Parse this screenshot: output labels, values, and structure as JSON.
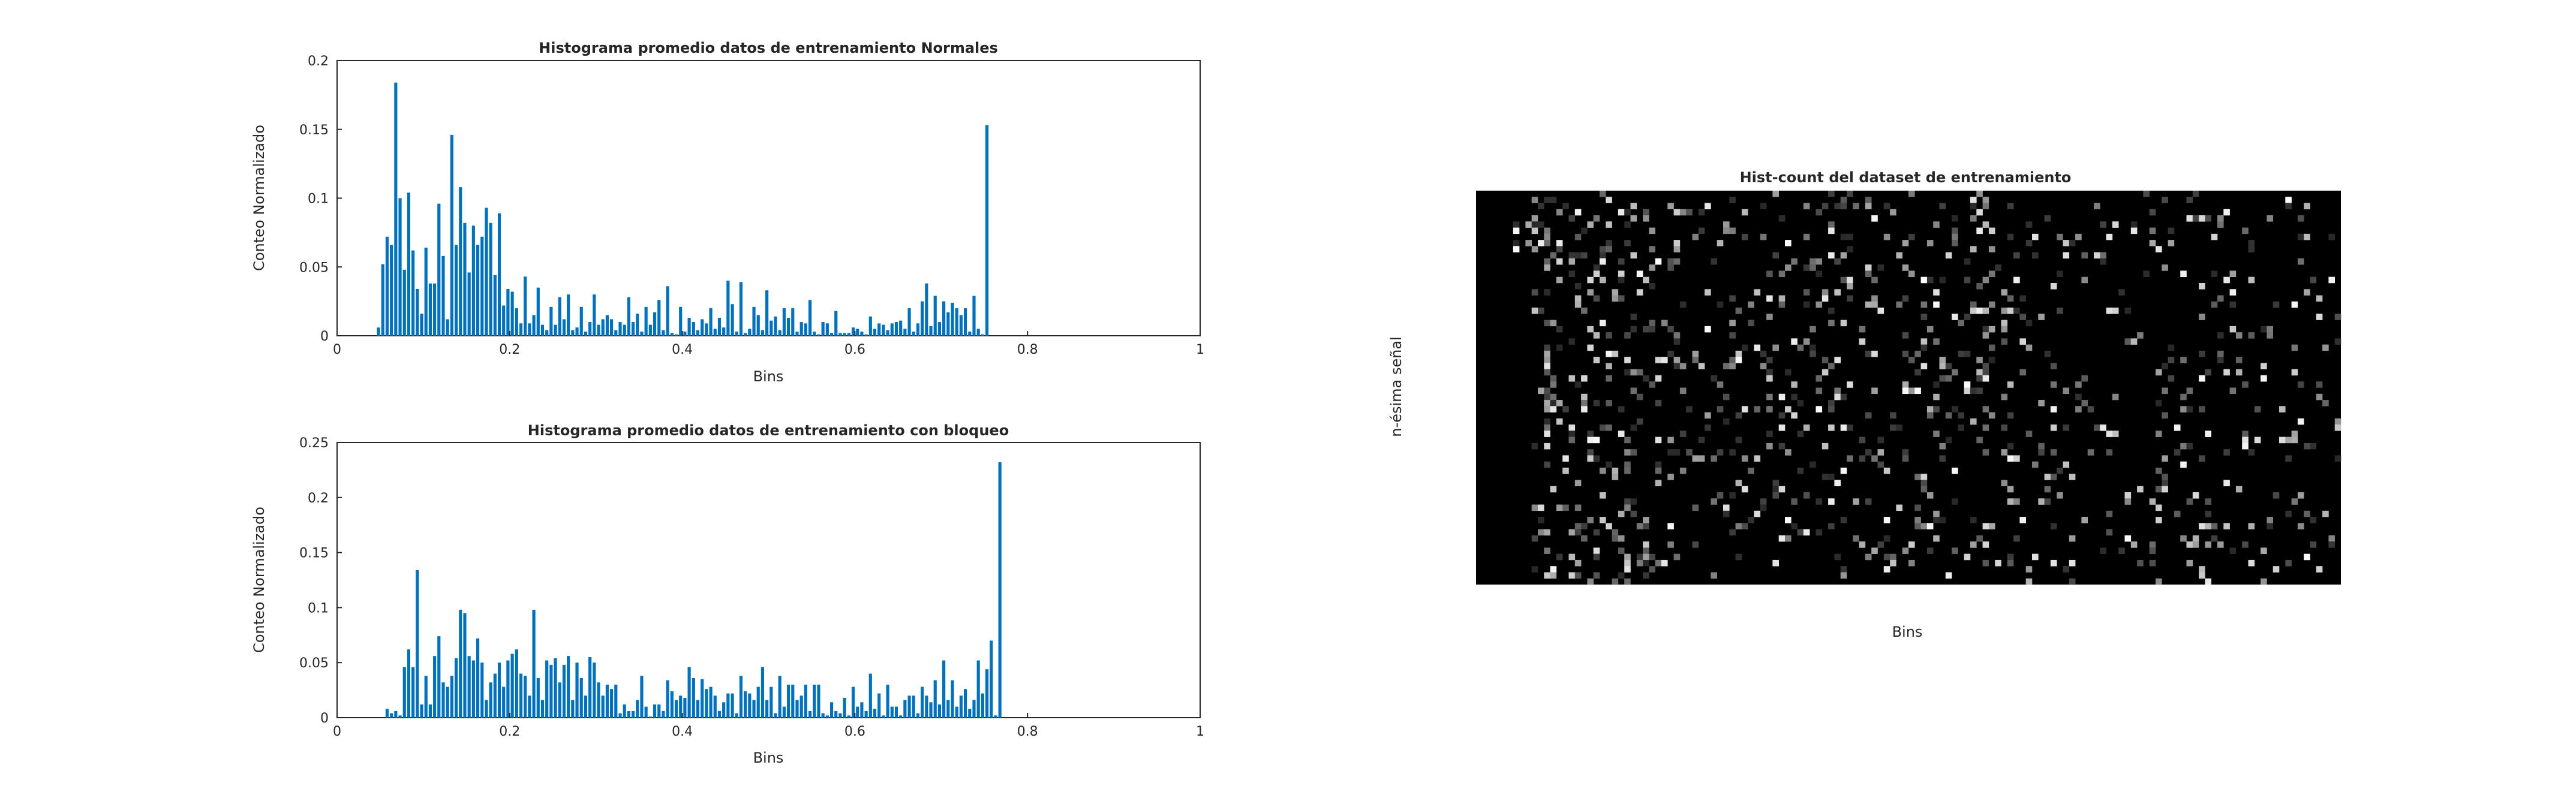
{
  "window": {
    "title": ""
  },
  "colors": {
    "bar": "#0072BD",
    "axes": "#262626",
    "heatmap_bg": "#000000"
  },
  "chart_data": [
    {
      "type": "bar",
      "title": "Histograma promedio datos de entrenamiento Normales",
      "xlabel": "Bins",
      "ylabel": "Conteo Normalizado",
      "xlim": [
        0,
        1
      ],
      "ylim": [
        0,
        0.2
      ],
      "xticks": [
        "0",
        "0.2",
        "0.4",
        "0.6",
        "0.8",
        "1"
      ],
      "yticks": [
        "0",
        "0.05",
        "0.1",
        "0.15",
        "0.2"
      ],
      "x_start": 0.048,
      "x_step": 0.005,
      "values": [
        0.006,
        0.052,
        0.072,
        0.066,
        0.184,
        0.1,
        0.048,
        0.104,
        0.062,
        0.034,
        0.016,
        0.064,
        0.038,
        0.038,
        0.096,
        0.058,
        0.012,
        0.146,
        0.066,
        0.108,
        0.082,
        0.046,
        0.08,
        0.066,
        0.072,
        0.093,
        0.082,
        0.044,
        0.089,
        0.022,
        0.034,
        0.032,
        0.02,
        0.009,
        0.043,
        0.009,
        0.015,
        0.035,
        0.008,
        0.004,
        0.021,
        0.008,
        0.028,
        0.012,
        0.03,
        0.004,
        0.006,
        0.021,
        0.003,
        0.01,
        0.03,
        0.008,
        0.012,
        0.015,
        0.012,
        0.004,
        0.01,
        0.008,
        0.028,
        0.01,
        0.016,
        0.003,
        0.021,
        0.008,
        0.017,
        0.026,
        0.004,
        0.036,
        0.002,
        0.001,
        0.021,
        0.003,
        0.013,
        0.01,
        0.004,
        0.012,
        0.009,
        0.02,
        0.005,
        0.013,
        0.006,
        0.04,
        0.023,
        0.003,
        0.039,
        0.002,
        0.005,
        0.021,
        0.015,
        0.004,
        0.033,
        0.011,
        0.014,
        0.004,
        0.02,
        0.013,
        0.02,
        0.003,
        0.01,
        0.009,
        0.026,
        0.003,
        0.001,
        0.01,
        0.009,
        0.002,
        0.018,
        0.002,
        0.002,
        0.002,
        0.006,
        0.005,
        0.003,
        0.001,
        0.014,
        0.005,
        0.009,
        0.008,
        0.004,
        0.009,
        0.01,
        0.011,
        0.005,
        0.02,
        0.003,
        0.009,
        0.025,
        0.038,
        0.007,
        0.029,
        0.01,
        0.025,
        0.017,
        0.024,
        0.02,
        0.015,
        0.02,
        0.003,
        0.029,
        0.005,
        0.001,
        0.153
      ]
    },
    {
      "type": "bar",
      "title": "Histograma promedio datos de entrenamiento con bloqueo",
      "xlabel": "Bins",
      "ylabel": "Conteo Normalizado",
      "xlim": [
        0,
        1
      ],
      "ylim": [
        0,
        0.25
      ],
      "xticks": [
        "0",
        "0.2",
        "0.4",
        "0.6",
        "0.8",
        "1"
      ],
      "yticks": [
        "0",
        "0.05",
        "0.1",
        "0.15",
        "0.2",
        "0.25"
      ],
      "x_start": 0.058,
      "x_step": 0.005,
      "values": [
        0.008,
        0.004,
        0.006,
        0.002,
        0.046,
        0.062,
        0.046,
        0.134,
        0.012,
        0.038,
        0.012,
        0.056,
        0.074,
        0.032,
        0.028,
        0.038,
        0.054,
        0.098,
        0.095,
        0.056,
        0.052,
        0.072,
        0.05,
        0.016,
        0.032,
        0.04,
        0.05,
        0.028,
        0.052,
        0.058,
        0.062,
        0.04,
        0.038,
        0.02,
        0.098,
        0.036,
        0.016,
        0.052,
        0.048,
        0.054,
        0.032,
        0.048,
        0.056,
        0.016,
        0.05,
        0.036,
        0.02,
        0.055,
        0.05,
        0.032,
        0.02,
        0.03,
        0.026,
        0.03,
        0.004,
        0.012,
        0.006,
        0.006,
        0.016,
        0.038,
        0.01,
        0.001,
        0.012,
        0.012,
        0.006,
        0.034,
        0.024,
        0.016,
        0.02,
        0.018,
        0.046,
        0.036,
        0.016,
        0.035,
        0.026,
        0.028,
        0.02,
        0.006,
        0.014,
        0.022,
        0.022,
        0.004,
        0.038,
        0.024,
        0.022,
        0.016,
        0.028,
        0.046,
        0.016,
        0.028,
        0.004,
        0.038,
        0.01,
        0.03,
        0.03,
        0.016,
        0.02,
        0.03,
        0.006,
        0.03,
        0.03,
        0.004,
        0.002,
        0.014,
        0.006,
        0.004,
        0.018,
        0.002,
        0.028,
        0.01,
        0.014,
        0.006,
        0.04,
        0.008,
        0.022,
        0.002,
        0.03,
        0.01,
        0.01,
        0.002,
        0.016,
        0.02,
        0.02,
        0.004,
        0.028,
        0.02,
        0.014,
        0.034,
        0.012,
        0.052,
        0.016,
        0.034,
        0.01,
        0.02,
        0.026,
        0.008,
        0.016,
        0.052,
        0.022,
        0.044,
        0.07,
        0.002,
        0.232
      ]
    },
    {
      "type": "heatmap",
      "title": "Hist-count del dataset de entrenamiento",
      "xlabel": "Bins",
      "ylabel": "n-ésima señal",
      "colormap": "gray",
      "n_cols": 140,
      "n_rows": 64,
      "empty_leading_cols": 9,
      "note_values": "intensities 0-1 per cell"
    }
  ]
}
